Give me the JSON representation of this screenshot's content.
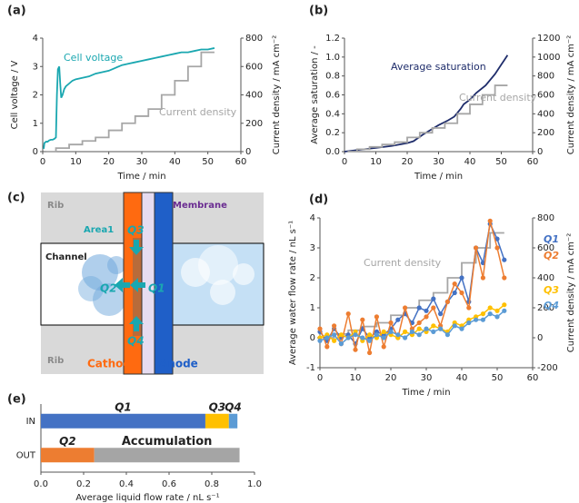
{
  "chart_data": [
    {
      "type": "line",
      "label": "(a)",
      "xlabel": "Time / min",
      "ylabel": "Cell voltage / V",
      "y2label": "Current density / mA cm⁻²",
      "xlim": [
        0,
        60
      ],
      "xticks": [
        0,
        10,
        20,
        30,
        40,
        50,
        60
      ],
      "ylim": [
        0,
        4
      ],
      "yticks": [
        0,
        1,
        2,
        3,
        4
      ],
      "y2lim": [
        0,
        800
      ],
      "y2ticks": [
        0,
        200,
        400,
        600,
        800
      ],
      "grid": false,
      "series": [
        {
          "name": "Cell voltage",
          "color": "#1aa7b0",
          "axis": "y",
          "x": [
            0.3,
            0.5,
            1,
            1.5,
            2,
            2.5,
            3,
            3.5,
            4,
            4.3,
            4.6,
            5,
            5.3,
            5.6,
            6,
            6.5,
            7,
            8,
            9,
            10,
            12,
            14,
            16,
            18,
            20,
            22,
            24,
            26,
            28,
            30,
            32,
            34,
            36,
            38,
            40,
            42,
            44,
            46,
            48,
            50,
            52
          ],
          "values": [
            0.1,
            0.3,
            0.35,
            0.35,
            0.4,
            0.42,
            0.42,
            0.45,
            0.5,
            2.0,
            2.9,
            3.0,
            2.4,
            1.9,
            2.0,
            2.2,
            2.3,
            2.4,
            2.5,
            2.55,
            2.6,
            2.65,
            2.75,
            2.8,
            2.85,
            2.95,
            3.05,
            3.1,
            3.15,
            3.2,
            3.25,
            3.3,
            3.35,
            3.4,
            3.45,
            3.5,
            3.5,
            3.55,
            3.6,
            3.6,
            3.65
          ]
        },
        {
          "name": "Current density",
          "color": "#a6a6a6",
          "axis": "y2",
          "x": [
            1,
            4,
            4,
            8,
            8,
            12,
            12,
            16,
            16,
            20,
            20,
            24,
            24,
            28,
            28,
            32,
            32,
            36,
            36,
            40,
            40,
            44,
            44,
            48,
            48,
            52
          ],
          "values": [
            0,
            0,
            25,
            25,
            50,
            50,
            75,
            75,
            100,
            100,
            150,
            150,
            200,
            200,
            250,
            250,
            300,
            300,
            400,
            400,
            500,
            500,
            600,
            600,
            700,
            700
          ]
        }
      ]
    },
    {
      "type": "line",
      "label": "(b)",
      "xlabel": "Time / min",
      "ylabel": "Average saturation / -",
      "y2label": "Current density / mA cm⁻²",
      "xlim": [
        0,
        60
      ],
      "xticks": [
        0,
        10,
        20,
        30,
        40,
        50,
        60
      ],
      "ylim": [
        0,
        1.2
      ],
      "yticks": [
        {
          "value": 0,
          "label": "0.0"
        },
        0.2,
        0.4,
        0.6,
        0.8,
        {
          "value": 1,
          "label": "1.0"
        },
        1.2
      ],
      "y2lim": [
        0,
        1200
      ],
      "y2ticks": [
        0,
        200,
        400,
        600,
        800,
        1000,
        1200
      ],
      "grid": false,
      "series": [
        {
          "name": "Average saturation",
          "color": "#1f2d6b",
          "axis": "y",
          "x": [
            0,
            5,
            10,
            15,
            20,
            22,
            25,
            28,
            30,
            33,
            35,
            37,
            38,
            40,
            42,
            45,
            48,
            50,
            51,
            52
          ],
          "values": [
            0,
            0.02,
            0.04,
            0.06,
            0.09,
            0.11,
            0.18,
            0.24,
            0.28,
            0.33,
            0.37,
            0.45,
            0.5,
            0.55,
            0.62,
            0.7,
            0.82,
            0.92,
            0.97,
            1.02
          ]
        },
        {
          "name": "Current density",
          "color": "#a6a6a6",
          "axis": "y2",
          "x": [
            1,
            4,
            4,
            8,
            8,
            12,
            12,
            16,
            16,
            20,
            20,
            24,
            24,
            28,
            28,
            32,
            32,
            36,
            36,
            40,
            40,
            44,
            44,
            48,
            48,
            52
          ],
          "values": [
            0,
            0,
            25,
            25,
            50,
            50,
            75,
            75,
            100,
            100,
            150,
            150,
            200,
            200,
            250,
            250,
            300,
            300,
            400,
            400,
            500,
            500,
            600,
            600,
            700,
            700
          ]
        }
      ]
    },
    {
      "type": "line",
      "label": "(d)",
      "xlabel": "Time / min",
      "ylabel": "Average water flow rate / nL s⁻¹",
      "y2label": "Current density / mA cm⁻²",
      "xlim": [
        0,
        60
      ],
      "xticks": [
        0,
        10,
        20,
        30,
        40,
        50,
        60
      ],
      "ylim": [
        -1,
        4
      ],
      "yticks": [
        -1,
        0,
        1,
        2,
        3,
        4
      ],
      "y2lim": [
        -200,
        800
      ],
      "y2ticks": [
        -200,
        0,
        200,
        400,
        600,
        800
      ],
      "grid": false,
      "series": [
        {
          "name": "Current density",
          "color": "#a6a6a6",
          "axis": "y2",
          "x": [
            1,
            4,
            4,
            8,
            8,
            12,
            12,
            16,
            16,
            20,
            20,
            24,
            24,
            28,
            28,
            32,
            32,
            36,
            36,
            40,
            40,
            44,
            44,
            48,
            48,
            52
          ],
          "values": [
            0,
            0,
            25,
            25,
            50,
            50,
            75,
            75,
            100,
            100,
            150,
            150,
            200,
            200,
            250,
            250,
            300,
            300,
            400,
            400,
            500,
            500,
            600,
            600,
            700,
            700
          ]
        },
        {
          "name": "Q1",
          "color": "#4472c4",
          "axis": "y",
          "markers": true,
          "x": [
            0,
            2,
            4,
            6,
            8,
            10,
            12,
            14,
            16,
            18,
            20,
            22,
            24,
            26,
            28,
            30,
            32,
            34,
            36,
            38,
            40,
            42,
            44,
            46,
            48,
            50,
            52
          ],
          "values": [
            0.2,
            -0.1,
            0.3,
            0,
            0.1,
            -0.2,
            0.3,
            0,
            0.2,
            0.1,
            0.3,
            0.6,
            0.8,
            0.5,
            1.0,
            0.9,
            1.3,
            0.8,
            1.2,
            1.5,
            2.0,
            1.2,
            3.0,
            2.5,
            3.8,
            3.3,
            2.6
          ]
        },
        {
          "name": "Q2",
          "color": "#ed7d31",
          "axis": "y",
          "markers": true,
          "x": [
            0,
            2,
            4,
            6,
            8,
            10,
            12,
            14,
            16,
            18,
            20,
            22,
            24,
            26,
            28,
            30,
            32,
            34,
            36,
            38,
            40,
            42,
            44,
            46,
            48,
            50,
            52
          ],
          "values": [
            0.3,
            -0.3,
            0.4,
            -0.2,
            0.8,
            -0.4,
            0.6,
            -0.5,
            0.7,
            -0.3,
            0.5,
            0,
            1.0,
            0.3,
            0.5,
            0.7,
            1.0,
            0.4,
            1.2,
            1.8,
            1.5,
            1.0,
            3.0,
            2.0,
            3.9,
            3.0,
            2.0
          ]
        },
        {
          "name": "Q3",
          "color": "#ffc000",
          "axis": "y",
          "markers": true,
          "x": [
            0,
            2,
            4,
            6,
            8,
            10,
            12,
            14,
            16,
            18,
            20,
            22,
            24,
            26,
            28,
            30,
            32,
            34,
            36,
            38,
            40,
            42,
            44,
            46,
            48,
            50,
            52
          ],
          "values": [
            0,
            0.1,
            -0.1,
            0.1,
            0,
            0.2,
            -0.1,
            0.1,
            0,
            0.2,
            0.1,
            0,
            0.2,
            0.1,
            0.3,
            0.2,
            0.4,
            0.3,
            0.2,
            0.5,
            0.4,
            0.6,
            0.7,
            0.8,
            1.0,
            0.9,
            1.1
          ]
        },
        {
          "name": "Q4",
          "color": "#5b9bd5",
          "axis": "y",
          "markers": true,
          "x": [
            0,
            2,
            4,
            6,
            8,
            10,
            12,
            14,
            16,
            18,
            20,
            22,
            24,
            26,
            28,
            30,
            32,
            34,
            36,
            38,
            40,
            42,
            44,
            46,
            48,
            50,
            52
          ],
          "values": [
            -0.1,
            0,
            0.1,
            -0.2,
            0,
            0.1,
            0,
            -0.1,
            0.1,
            0,
            0.2,
            0.1,
            0,
            0.2,
            0.1,
            0.3,
            0.2,
            0.3,
            0.1,
            0.4,
            0.3,
            0.5,
            0.6,
            0.6,
            0.8,
            0.7,
            0.9
          ]
        }
      ]
    },
    {
      "type": "hbar",
      "label": "(e)",
      "xlabel": "Average liquid flow rate / nL s⁻¹",
      "stacked": true,
      "categories": [
        "IN",
        "OUT"
      ],
      "xlim": [
        0,
        1
      ],
      "xticks": [
        {
          "value": 0,
          "label": "0.0"
        },
        0.2,
        0.4,
        0.6,
        0.8,
        {
          "value": 1,
          "label": "1.0"
        }
      ],
      "series": [
        {
          "name": "Q1",
          "color": "#4472c4",
          "values": [
            0.77,
            null
          ]
        },
        {
          "name": "Q3",
          "color": "#ffc000",
          "values": [
            0.11,
            null
          ]
        },
        {
          "name": "Q4",
          "color": "#5b9bd5",
          "values": [
            0.04,
            null
          ]
        },
        {
          "name": "Q2",
          "color": "#ed7d31",
          "values": [
            null,
            0.25
          ]
        },
        {
          "name": "Accumulation",
          "color": "#a5a5a5",
          "values": [
            null,
            0.68
          ]
        }
      ]
    }
  ],
  "diagram": {
    "label": "(c)",
    "rib_top": "Rib",
    "membrane": "Membrane",
    "area": "Area1",
    "channel": "Channel",
    "q3": "Q3",
    "q1": "Q1",
    "q2": "Q2",
    "q4": "Q4",
    "rib_bottom": "Rib",
    "cathode": "Cathode",
    "anode": "Anode"
  }
}
